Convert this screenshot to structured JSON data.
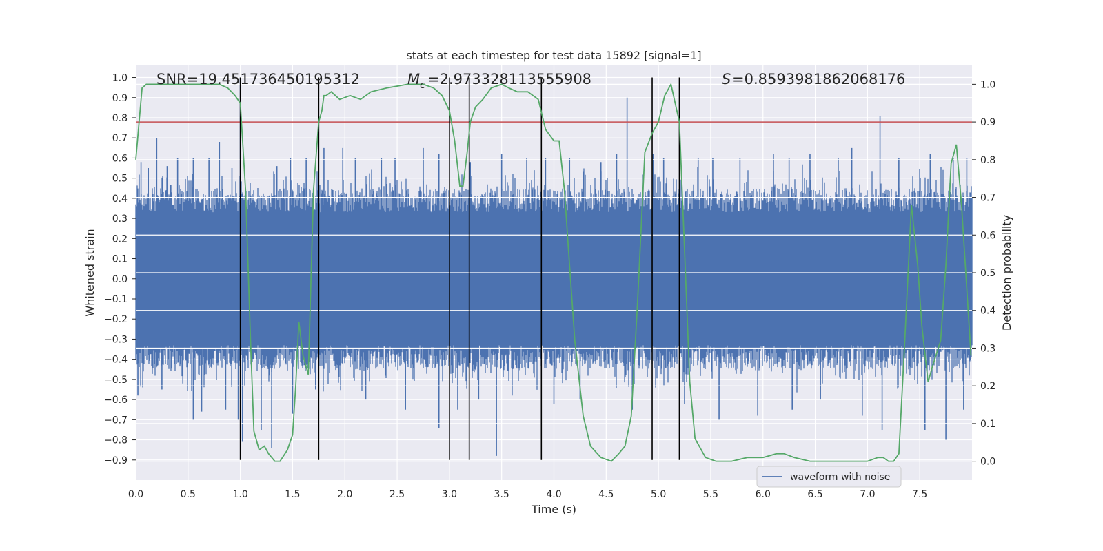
{
  "chart_data": {
    "type": "line",
    "title": "stats at each timestep for test data 15892 [signal=1]",
    "xlabel": "Time (s)",
    "ylabel": "Whitened strain",
    "y2label": "Detection probability",
    "xlim": [
      0.0,
      8.0
    ],
    "ylim": [
      -1.0,
      1.06
    ],
    "y2lim": [
      -0.05,
      1.05
    ],
    "grid": true,
    "x_ticks": [
      "0.0",
      "0.5",
      "1.0",
      "1.5",
      "2.0",
      "2.5",
      "3.0",
      "3.5",
      "4.0",
      "4.5",
      "5.0",
      "5.5",
      "6.0",
      "6.5",
      "7.0",
      "7.5"
    ],
    "x_tick_values": [
      0.0,
      0.5,
      1.0,
      1.5,
      2.0,
      2.5,
      3.0,
      3.5,
      4.0,
      4.5,
      5.0,
      5.5,
      6.0,
      6.5,
      7.0,
      7.5
    ],
    "y_ticks": [
      "1.0",
      "0.9",
      "0.8",
      "0.7",
      "0.6",
      "0.5",
      "0.4",
      "0.3",
      "0.2",
      "0.1",
      "0.0",
      "−0.1",
      "−0.2",
      "−0.3",
      "−0.4",
      "−0.5",
      "−0.6",
      "−0.7",
      "−0.8",
      "−0.9"
    ],
    "y_tick_values": [
      1.0,
      0.9,
      0.8,
      0.7,
      0.6,
      0.5,
      0.4,
      0.3,
      0.2,
      0.1,
      0.0,
      -0.1,
      -0.2,
      -0.3,
      -0.4,
      -0.5,
      -0.6,
      -0.7,
      -0.8,
      -0.9
    ],
    "y2_ticks": [
      "1.0",
      "0.9",
      "0.8",
      "0.7",
      "0.6",
      "0.5",
      "0.4",
      "0.3",
      "0.2",
      "0.1",
      "0.0"
    ],
    "y2_tick_values": [
      1.0,
      0.9,
      0.8,
      0.7,
      0.6,
      0.5,
      0.4,
      0.3,
      0.2,
      0.1,
      0.0
    ],
    "annotations": {
      "snr": "SNR=19.451736450195312",
      "mc": "=2.973328113555908",
      "s": "=0.8593981862068176"
    },
    "threshold": {
      "y2": 0.9,
      "color": "#c44e52"
    },
    "vlines": {
      "x": [
        1.0,
        1.75,
        3.0,
        3.19,
        3.88,
        4.94,
        5.2
      ],
      "y_range": [
        -0.9,
        1.0
      ],
      "color": "#000000"
    },
    "legend": {
      "placement": "lower-right",
      "entries": [
        {
          "name": "waveform with noise",
          "color": "#4c72b0"
        }
      ]
    },
    "series": [
      {
        "name": "waveform with noise",
        "color": "#4c72b0",
        "axis": "left",
        "envelope_typical": [
          -0.45,
          0.45
        ],
        "spikes": [
          [
            0.02,
            -0.58
          ],
          [
            0.05,
            0.58
          ],
          [
            0.12,
            0.55
          ],
          [
            0.2,
            0.7
          ],
          [
            0.25,
            -0.55
          ],
          [
            0.3,
            0.56
          ],
          [
            0.4,
            0.6
          ],
          [
            0.45,
            -0.52
          ],
          [
            0.55,
            0.6
          ],
          [
            0.55,
            -0.7
          ],
          [
            0.63,
            -0.66
          ],
          [
            0.7,
            0.6
          ],
          [
            0.8,
            0.68
          ],
          [
            0.86,
            -0.65
          ],
          [
            0.92,
            0.55
          ],
          [
            1.0,
            1.0
          ],
          [
            0.98,
            -0.7
          ],
          [
            1.02,
            -0.81
          ],
          [
            1.2,
            -0.75
          ],
          [
            1.3,
            -0.84
          ],
          [
            1.35,
            0.56
          ],
          [
            1.48,
            0.6
          ],
          [
            1.5,
            -0.67
          ],
          [
            1.63,
            0.6
          ],
          [
            1.72,
            -0.55
          ],
          [
            1.8,
            0.65
          ],
          [
            1.98,
            0.65
          ],
          [
            2.1,
            0.6
          ],
          [
            2.2,
            -0.6
          ],
          [
            2.35,
            0.6
          ],
          [
            2.48,
            0.6
          ],
          [
            2.58,
            -0.65
          ],
          [
            2.75,
            0.65
          ],
          [
            2.9,
            0.62
          ],
          [
            2.9,
            -0.74
          ],
          [
            3.08,
            -0.65
          ],
          [
            3.2,
            0.58
          ],
          [
            3.28,
            -0.6
          ],
          [
            3.45,
            -0.88
          ],
          [
            3.5,
            0.62
          ],
          [
            3.6,
            -0.58
          ],
          [
            3.74,
            0.6
          ],
          [
            3.92,
            0.6
          ],
          [
            4.0,
            -0.62
          ],
          [
            4.15,
            0.6
          ],
          [
            4.25,
            -0.6
          ],
          [
            4.45,
            0.58
          ],
          [
            4.6,
            0.62
          ],
          [
            4.7,
            0.9
          ],
          [
            4.75,
            -0.65
          ],
          [
            4.95,
            0.62
          ],
          [
            5.05,
            0.6
          ],
          [
            5.25,
            -0.62
          ],
          [
            5.38,
            0.6
          ],
          [
            5.52,
            0.6
          ],
          [
            5.58,
            -0.7
          ],
          [
            5.78,
            0.6
          ],
          [
            5.95,
            -0.68
          ],
          [
            6.1,
            0.62
          ],
          [
            6.25,
            0.6
          ],
          [
            6.28,
            -0.65
          ],
          [
            6.45,
            0.62
          ],
          [
            6.55,
            -0.6
          ],
          [
            6.72,
            0.6
          ],
          [
            6.85,
            0.65
          ],
          [
            6.95,
            -0.68
          ],
          [
            7.12,
            0.81
          ],
          [
            7.14,
            -0.75
          ],
          [
            7.3,
            0.6
          ],
          [
            7.55,
            -0.75
          ],
          [
            7.6,
            0.62
          ],
          [
            7.75,
            -0.8
          ],
          [
            7.82,
            0.6
          ],
          [
            7.92,
            -0.65
          ],
          [
            7.95,
            0.6
          ]
        ]
      },
      {
        "name": "",
        "color": "#55a868",
        "axis": "right",
        "x": [
          0.0,
          0.06,
          0.1,
          0.3,
          0.6,
          0.8,
          0.88,
          0.95,
          1.0,
          1.05,
          1.1,
          1.13,
          1.18,
          1.23,
          1.27,
          1.33,
          1.38,
          1.45,
          1.5,
          1.53,
          1.56,
          1.6,
          1.65,
          1.7,
          1.75,
          1.78,
          1.8,
          1.82,
          1.87,
          1.95,
          2.05,
          2.15,
          2.25,
          2.4,
          2.6,
          2.75,
          2.85,
          2.93,
          3.0,
          3.05,
          3.1,
          3.13,
          3.17,
          3.2,
          3.25,
          3.32,
          3.4,
          3.5,
          3.57,
          3.65,
          3.75,
          3.85,
          3.92,
          4.0,
          4.05,
          4.1,
          4.15,
          4.2,
          4.28,
          4.35,
          4.45,
          4.55,
          4.62,
          4.68,
          4.74,
          4.8,
          4.87,
          4.94,
          5.0,
          5.06,
          5.12,
          5.2,
          5.25,
          5.3,
          5.35,
          5.45,
          5.55,
          5.7,
          5.85,
          6.0,
          6.13,
          6.2,
          6.3,
          6.45,
          6.6,
          6.75,
          7.0,
          7.1,
          7.15,
          7.2,
          7.25,
          7.3,
          7.35,
          7.42,
          7.48,
          7.52,
          7.58,
          7.62,
          7.7,
          7.75,
          7.8,
          7.85,
          7.9,
          7.99
        ],
        "values": [
          0.8,
          0.99,
          1.0,
          1.0,
          1.0,
          1.0,
          0.99,
          0.97,
          0.95,
          0.72,
          0.3,
          0.08,
          0.03,
          0.04,
          0.02,
          0.0,
          0.0,
          0.03,
          0.07,
          0.2,
          0.37,
          0.28,
          0.23,
          0.72,
          0.9,
          0.93,
          0.97,
          0.97,
          0.98,
          0.96,
          0.97,
          0.96,
          0.98,
          0.99,
          1.0,
          1.0,
          0.99,
          0.97,
          0.93,
          0.85,
          0.73,
          0.73,
          0.82,
          0.9,
          0.94,
          0.96,
          0.99,
          1.0,
          0.99,
          0.98,
          0.98,
          0.96,
          0.88,
          0.85,
          0.85,
          0.72,
          0.52,
          0.32,
          0.12,
          0.04,
          0.01,
          0.0,
          0.02,
          0.04,
          0.12,
          0.42,
          0.82,
          0.87,
          0.9,
          0.97,
          1.0,
          0.9,
          0.56,
          0.21,
          0.06,
          0.01,
          0.0,
          0.0,
          0.01,
          0.01,
          0.02,
          0.02,
          0.01,
          0.0,
          0.0,
          0.0,
          0.0,
          0.01,
          0.01,
          0.0,
          0.0,
          0.02,
          0.28,
          0.68,
          0.52,
          0.36,
          0.21,
          0.25,
          0.32,
          0.52,
          0.79,
          0.84,
          0.68,
          0.28
        ]
      }
    ]
  }
}
